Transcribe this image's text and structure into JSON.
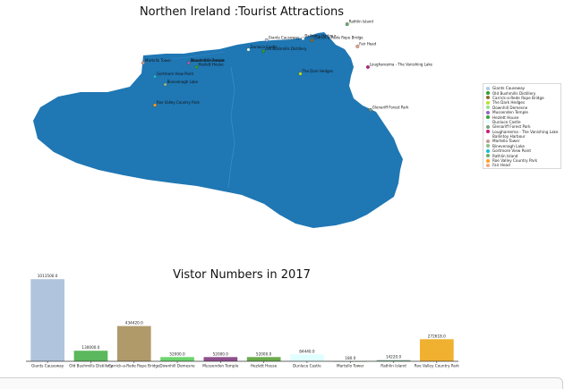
{
  "map": {
    "title": "Northen Ireland :Tourist Attractions",
    "land_color": "#1f77b4",
    "attractions": [
      {
        "name": "Giants Causeway",
        "color": "#aec7e8",
        "lon": -6.51,
        "lat": 55.24,
        "label": "Giants Causeway"
      },
      {
        "name": "Old Bushmills Distillery",
        "color": "#2ca02c",
        "lon": -6.522,
        "lat": 55.205,
        "label": "Old Bushmills Distillery"
      },
      {
        "name": "Carrick-a-Rede Rope Bridge",
        "color": "#8c6d31",
        "lon": -6.335,
        "lat": 55.239,
        "label": "Carrick-a-Rede Rope Bridge"
      },
      {
        "name": "The Dark Hedges",
        "color": "#b8e22b",
        "lon": -6.38,
        "lat": 55.134,
        "label": "The Dark Hedges"
      },
      {
        "name": "Downhill Demesne",
        "color": "#98df8a",
        "lon": -6.81,
        "lat": 55.168,
        "label": "Downhill Demesne"
      },
      {
        "name": "Mussenden Temple",
        "color": "#9467bd",
        "lon": -6.81,
        "lat": 55.168,
        "label": "Mussenden Temple"
      },
      {
        "name": "Hezlett House",
        "color": "#3aa03a",
        "lon": -6.78,
        "lat": 55.155,
        "label": "Hezlett House"
      },
      {
        "name": "Dunluce Castle",
        "color": "#e0ffff",
        "lon": -6.58,
        "lat": 55.21,
        "label": "Dunluce Castle"
      },
      {
        "name": "Glenariff Forest Park",
        "color": "#7f9f7f",
        "lon": -6.11,
        "lat": 55.02,
        "label": "Glenariff Forest Park"
      },
      {
        "name": "Loughareema - The Vanishing Lake",
        "color": "#c51b7d",
        "lon": -6.12,
        "lat": 55.155,
        "label": "Loughareema - The Vanishing Lake"
      },
      {
        "name": "Ballintoy Harbour",
        "color": "#ffffff",
        "lon": -6.37,
        "lat": 55.245,
        "label": "Ballintoy Harbour"
      },
      {
        "name": "Martello Tower",
        "color": "#c49c94",
        "lon": -6.985,
        "lat": 55.168,
        "label": "Martello Tower"
      },
      {
        "name": "Binevenagh Lake",
        "color": "#8fbc8f",
        "lon": -6.9,
        "lat": 55.1,
        "label": "Binevenagh Lake"
      },
      {
        "name": "Gortmore View Point",
        "color": "#17becf",
        "lon": -6.94,
        "lat": 55.125,
        "label": "Gortmore View Point"
      },
      {
        "name": "Rathlin Island",
        "color": "#6bae6b",
        "lon": -6.2,
        "lat": 55.29,
        "label": "Rathlin Island"
      },
      {
        "name": "Roe Valley Country Park",
        "color": "#ff9f1c",
        "lon": -6.94,
        "lat": 55.035,
        "label": "Roe Valley Country Park"
      },
      {
        "name": "Fair Head",
        "color": "#f4a582",
        "lon": -6.16,
        "lat": 55.22,
        "label": "Fair Head"
      }
    ]
  },
  "chart_data": {
    "type": "bar",
    "title": "Vistor Numbers in 2017",
    "categories": [
      "Giants Causeway",
      "Old Bushmills Distillery",
      "Carrick-a-Rede Rope Bridge",
      "Downhill Demesne",
      "Mussenden Temple",
      "Hezlett House",
      "Dunluce Castle",
      "Martello Tower",
      "Rathlin Island",
      "Roe Valley Country Park"
    ],
    "values": [
      1011500.0,
      130000.0,
      434420.0,
      52000.0,
      52000.0,
      52000.0,
      84440.0,
      180.0,
      14220.0,
      272618.0
    ],
    "value_labels": [
      "1011500.0",
      "130000.0",
      "434420.0",
      "52000.0",
      "52000.0",
      "52000.0",
      "84440.0",
      "180.0",
      "14220.0",
      "272618.0"
    ],
    "colors": [
      "#b0c4de",
      "#5cb85c",
      "#b09a6a",
      "#6cd46c",
      "#8e4f8e",
      "#6aaa4a",
      "#e0ffff",
      "#3a7a3a",
      "#7aaa8a",
      "#f0b030"
    ],
    "xlabel": "",
    "ylabel": "",
    "ylim": [
      0,
      1080000
    ],
    "grid": false
  }
}
